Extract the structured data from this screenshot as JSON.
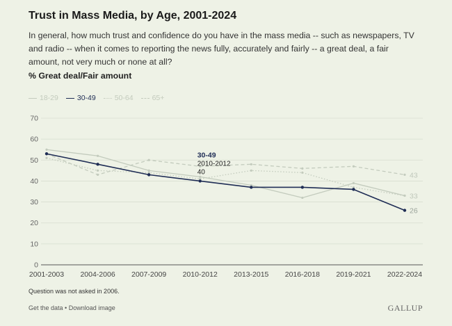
{
  "title": "Trust in Mass Media, by Age, 2001-2024",
  "subtitle": "In general, how much trust and confidence do you have in the mass media -- such as newspapers, TV and radio -- when it comes to reporting the news fully, accurately and fairly -- a great deal, a fair amount, not very much or none at all?",
  "measure": "% Great deal/Fair amount",
  "footnote": "Question was not asked in 2006.",
  "links": {
    "data": "Get the data",
    "separator": " • ",
    "download": "Download image"
  },
  "brand": "GALLUP",
  "colors": {
    "background": "#eef2e6",
    "active": "#1f2d55",
    "inactive": "#c3cbbd",
    "grid": "#d7ddd0"
  },
  "chart_data": {
    "type": "line",
    "categories": [
      "2001-2003",
      "2004-2006",
      "2007-2009",
      "2010-2012",
      "2013-2015",
      "2016-2018",
      "2019-2021",
      "2022-2024"
    ],
    "ylim": [
      0,
      70
    ],
    "yticks": [
      0,
      10,
      20,
      30,
      40,
      50,
      60,
      70
    ],
    "xlabel": "",
    "ylabel": "",
    "legend_position": "top-left",
    "highlighted_series": "30-49",
    "series": [
      {
        "name": "18-29",
        "style": "solid",
        "values": [
          55,
          52,
          45,
          42,
          38,
          32,
          39,
          33
        ],
        "end_label": "33"
      },
      {
        "name": "30-49",
        "style": "solid",
        "values": [
          53,
          48,
          43,
          40,
          37,
          37,
          36,
          26
        ],
        "end_label": "26"
      },
      {
        "name": "50-64",
        "style": "dotted",
        "values": [
          51,
          45,
          44,
          41,
          45,
          44,
          37,
          33
        ],
        "end_label": ""
      },
      {
        "name": "65+",
        "style": "dashed",
        "values": [
          53,
          43,
          50,
          47,
          48,
          46,
          47,
          43
        ],
        "end_label": "43"
      }
    ],
    "tooltip": {
      "series": "30-49",
      "period": "2010-2012",
      "value": "40"
    }
  }
}
